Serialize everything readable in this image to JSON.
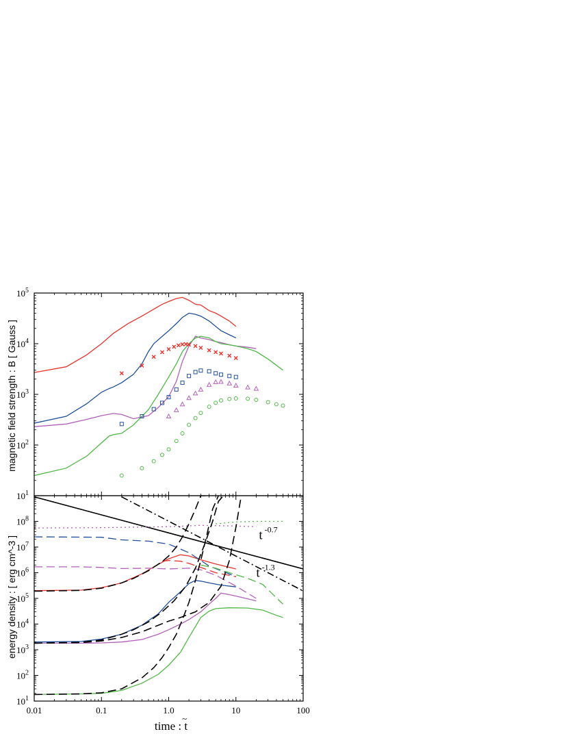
{
  "chart_data": [
    {
      "type": "line",
      "ylabel": "magnetic field strength : B [ Gauss ]",
      "xscale": "log",
      "yscale": "log",
      "xlim": [
        0.01,
        100
      ],
      "ylim": [
        10,
        100000
      ],
      "ytick_labels": [
        "10^1",
        "10^2",
        "10^3",
        "10^4",
        "10^5"
      ],
      "colors": {
        "red": "#e8322b",
        "blue": "#1f4e9a",
        "purple": "#b160b8",
        "green": "#4fb845"
      },
      "series": [
        {
          "color": "red",
          "style": "solid",
          "x": [
            0.01,
            0.03,
            0.06,
            0.1,
            0.15,
            0.25,
            0.4,
            0.6,
            0.8,
            1.0,
            1.3,
            1.6,
            2.0,
            2.5,
            3.0,
            4.0,
            5.0,
            6.0,
            8.0,
            10.0
          ],
          "y": [
            2700,
            3500,
            6000,
            10000,
            16000,
            25000,
            35000,
            48000,
            60000,
            68000,
            78000,
            82000,
            72000,
            60000,
            58000,
            45000,
            40000,
            35000,
            28000,
            22000
          ]
        },
        {
          "color": "blue",
          "style": "solid",
          "x": [
            0.01,
            0.03,
            0.06,
            0.1,
            0.13,
            0.15,
            0.2,
            0.3,
            0.4,
            0.5,
            0.6,
            0.8,
            1.0,
            1.3,
            1.6,
            2.0,
            2.5,
            3.0,
            4.0,
            5.0,
            6.0,
            8.0,
            10.0
          ],
          "y": [
            270,
            370,
            650,
            1100,
            1300,
            1400,
            1700,
            2500,
            4000,
            7000,
            10000,
            14000,
            18000,
            25000,
            33000,
            40000,
            38000,
            35000,
            28000,
            22000,
            18000,
            15000,
            13000
          ]
        },
        {
          "color": "purple",
          "style": "solid",
          "x": [
            0.01,
            0.03,
            0.06,
            0.1,
            0.15,
            0.2,
            0.3,
            0.5,
            0.7,
            1.0,
            1.3,
            1.6,
            2.0,
            2.5,
            3.0,
            4.0,
            5.0,
            6.0,
            8.0,
            10.0,
            15.0,
            20.0
          ],
          "y": [
            230,
            260,
            320,
            380,
            420,
            400,
            330,
            380,
            550,
            900,
            1800,
            4500,
            9000,
            14000,
            13000,
            12000,
            11000,
            10500,
            9500,
            9000,
            8500,
            8000
          ]
        },
        {
          "color": "green",
          "style": "solid",
          "x": [
            0.01,
            0.03,
            0.06,
            0.1,
            0.13,
            0.15,
            0.2,
            0.3,
            0.5,
            0.7,
            1.0,
            1.3,
            1.6,
            2.0,
            2.5,
            3.0,
            4.0,
            5.0,
            6.0,
            8.0,
            10.0,
            15.0,
            20.0,
            30.0,
            50.0
          ],
          "y": [
            25,
            35,
            60,
            110,
            150,
            160,
            170,
            250,
            500,
            1000,
            2200,
            4000,
            7000,
            10000,
            13000,
            14000,
            13000,
            11000,
            10000,
            9500,
            9000,
            8000,
            7000,
            5000,
            3000
          ]
        },
        {
          "color": "red",
          "style": "marker-x",
          "x": [
            0.2,
            0.4,
            0.6,
            0.8,
            1.0,
            1.2,
            1.4,
            1.6,
            1.8,
            2.0,
            2.5,
            3.0,
            4.0,
            5.0,
            6.0,
            8.0,
            10.0
          ],
          "y": [
            2600,
            3700,
            5500,
            6800,
            7800,
            8700,
            9300,
            9700,
            9800,
            9600,
            9000,
            8300,
            7400,
            6800,
            6400,
            5800,
            5200
          ]
        },
        {
          "color": "blue",
          "style": "marker-square",
          "x": [
            0.2,
            0.4,
            0.6,
            0.8,
            1.0,
            1.3,
            1.6,
            2.0,
            2.5,
            3.0,
            4.0,
            5.0,
            6.0,
            8.0,
            10.0
          ],
          "y": [
            260,
            370,
            510,
            680,
            880,
            1250,
            1700,
            2300,
            2750,
            2950,
            2850,
            2600,
            2450,
            2300,
            2200
          ]
        },
        {
          "color": "purple",
          "style": "marker-triangle",
          "x": [
            1.0,
            1.3,
            1.6,
            2.0,
            2.5,
            3.0,
            4.0,
            5.0,
            6.0,
            8.0,
            10.0,
            15.0,
            20.0
          ],
          "y": [
            370,
            490,
            640,
            850,
            1050,
            1250,
            1550,
            1750,
            1780,
            1650,
            1500,
            1380,
            1300
          ]
        },
        {
          "color": "green",
          "style": "marker-circle",
          "x": [
            0.2,
            0.4,
            0.6,
            0.8,
            1.0,
            1.3,
            1.6,
            2.0,
            2.5,
            3.0,
            4.0,
            5.0,
            6.0,
            8.0,
            10.0,
            15.0,
            20.0,
            30.0,
            40.0,
            50.0
          ],
          "y": [
            25,
            35,
            48,
            64,
            82,
            120,
            170,
            250,
            340,
            430,
            570,
            680,
            760,
            810,
            830,
            820,
            780,
            700,
            640,
            600
          ]
        }
      ]
    },
    {
      "type": "line",
      "ylabel": "energy density : [ erg cm^-3 ]",
      "xlabel": "time : t~",
      "xscale": "log",
      "yscale": "log",
      "xlim": [
        0.01,
        100
      ],
      "ylim": [
        10,
        1000000000
      ],
      "xtick_labels": [
        "0.01",
        "0.1",
        "1.0",
        "10",
        "100"
      ],
      "ytick_labels": [
        "10^1",
        "10^2",
        "10^3",
        "10^4",
        "10^5",
        "10^6",
        "10^7",
        "10^8",
        "10^9"
      ],
      "annotations": [
        {
          "text": "t",
          "exponent": "-0.7",
          "x": 22,
          "y": 20000000
        },
        {
          "text": "t",
          "exponent": "-1.3",
          "x": 20,
          "y": 700000
        }
      ],
      "series": [
        {
          "color": "black",
          "style": "solid",
          "x": [
            0.01,
            100
          ],
          "y": [
            900000000,
            1400000
          ]
        },
        {
          "color": "black",
          "style": "dashdot",
          "x": [
            0.2,
            100
          ],
          "y": [
            900000000,
            195000
          ]
        },
        {
          "color": "red",
          "style": "solid",
          "x": [
            0.01,
            0.05,
            0.1,
            0.2,
            0.4,
            0.6,
            1.0,
            1.5,
            2.0,
            3.0,
            5.0,
            10.0
          ],
          "y": [
            200000,
            210000,
            260000,
            400000,
            900000,
            1700000,
            3500000,
            5000000,
            4500000,
            3200000,
            2200000,
            1400000
          ]
        },
        {
          "color": "blue",
          "style": "solid",
          "x": [
            0.01,
            0.05,
            0.1,
            0.2,
            0.4,
            0.7,
            1.0,
            1.5,
            2.0,
            2.5,
            3.0,
            4.0,
            6.0,
            10.0
          ],
          "y": [
            2000,
            2100,
            2600,
            4000,
            9000,
            25000,
            70000,
            180000,
            380000,
            500000,
            470000,
            400000,
            330000,
            280000
          ]
        },
        {
          "color": "purple",
          "style": "solid",
          "x": [
            0.01,
            0.05,
            0.1,
            0.2,
            0.4,
            0.7,
            1.0,
            1.5,
            2.0,
            3.0,
            4.0,
            5.0,
            6.0,
            8.0,
            12.0,
            20.0
          ],
          "y": [
            1800,
            1800,
            1850,
            2000,
            2500,
            4000,
            6000,
            10000,
            15000,
            30000,
            60000,
            100000,
            160000,
            140000,
            110000,
            80000
          ]
        },
        {
          "color": "green",
          "style": "solid",
          "x": [
            0.01,
            0.05,
            0.1,
            0.2,
            0.4,
            0.7,
            1.0,
            1.5,
            2.0,
            3.0,
            4.0,
            5.0,
            8.0,
            15.0,
            25.0,
            40.0,
            50.0
          ],
          "y": [
            18,
            19,
            20,
            26,
            50,
            110,
            250,
            800,
            3000,
            18000,
            32000,
            40000,
            43000,
            42000,
            35000,
            22000,
            18000
          ]
        },
        {
          "color": "red",
          "style": "dashed",
          "x": [
            0.8,
            1.0,
            1.5,
            2.0,
            3.0,
            5.0,
            10.0
          ],
          "y": [
            2800000,
            3000000,
            2800000,
            2300000,
            1600000,
            1000000,
            700000
          ]
        },
        {
          "color": "blue",
          "style": "dashed",
          "x": [
            0.01,
            0.1,
            0.2,
            0.5,
            1.0,
            2.0,
            3.0,
            4.0,
            6.0,
            10.0
          ],
          "y": [
            25000000,
            24000000,
            19000000,
            17000000,
            13000000,
            6000000,
            3000000,
            1800000,
            1200000,
            700000
          ]
        },
        {
          "color": "purple",
          "style": "dashed",
          "x": [
            0.01,
            0.05,
            0.1,
            0.2,
            0.5,
            1.0,
            2.0,
            3.0,
            5.0,
            10.0,
            20.0
          ],
          "y": [
            1700000,
            1700000,
            1600000,
            1450000,
            1500000,
            1400000,
            1500000,
            1300000,
            800000,
            300000,
            100000
          ]
        },
        {
          "color": "green",
          "style": "dashed",
          "x": [
            3.0,
            5.0,
            8.0,
            15.0,
            25.0,
            50.0
          ],
          "y": [
            2000000,
            1500000,
            1000000,
            600000,
            350000,
            60000
          ]
        },
        {
          "color": "purple",
          "style": "dotted",
          "x": [
            0.01,
            0.1,
            1.0,
            3.0,
            10.0,
            20.0
          ],
          "y": [
            55000000,
            57000000,
            62000000,
            70000000,
            66000000,
            62000000
          ]
        },
        {
          "color": "green",
          "style": "dotted",
          "x": [
            5.0,
            10.0,
            20.0,
            50.0
          ],
          "y": [
            80000000,
            95000000,
            100000000,
            100000000
          ]
        },
        {
          "color": "black",
          "style": "dashed",
          "x": [
            0.01,
            0.05,
            0.1,
            0.2,
            0.3,
            0.5,
            0.8,
            1.0,
            1.3,
            1.6,
            2.0,
            2.5,
            3.0,
            3.5
          ],
          "y": [
            190000,
            205000,
            250000,
            400000,
            600000,
            1200000,
            2700000,
            4500000,
            10000000,
            25000000,
            80000000,
            300000000,
            1000000000,
            1000000000
          ]
        },
        {
          "color": "black",
          "style": "dashed",
          "x": [
            0.01,
            0.05,
            0.1,
            0.2,
            0.3,
            0.5,
            0.8,
            1.2,
            1.8,
            2.5,
            3.5,
            4.5,
            5.5,
            6.5
          ],
          "y": [
            1800,
            1950,
            2400,
            4000,
            6000,
            12000,
            30000,
            80000,
            300000,
            1500000,
            15000000,
            100000000,
            600000000,
            1000000000
          ]
        },
        {
          "color": "black",
          "style": "dashed",
          "x": [
            0.01,
            0.05,
            0.1,
            0.2,
            0.4,
            0.7,
            1.0,
            1.5,
            2.5,
            4.0,
            6.0,
            8.0,
            10.0,
            12.0
          ],
          "y": [
            1800,
            1900,
            2200,
            3000,
            5000,
            9000,
            13000,
            18000,
            30000,
            70000,
            300000,
            3000000,
            60000000,
            1000000000
          ]
        },
        {
          "color": "black",
          "style": "dashed",
          "x": [
            0.01,
            0.05,
            0.1,
            0.2,
            0.4,
            0.6,
            0.8,
            1.0,
            1.3,
            1.6,
            2.0,
            2.5,
            3.0,
            3.7,
            4.5,
            5.5
          ],
          "y": [
            18,
            19,
            21,
            30,
            80,
            200,
            500,
            1200,
            4000,
            15000,
            70000,
            500000,
            3000000,
            30000000,
            300000000,
            1000000000
          ]
        }
      ]
    }
  ]
}
